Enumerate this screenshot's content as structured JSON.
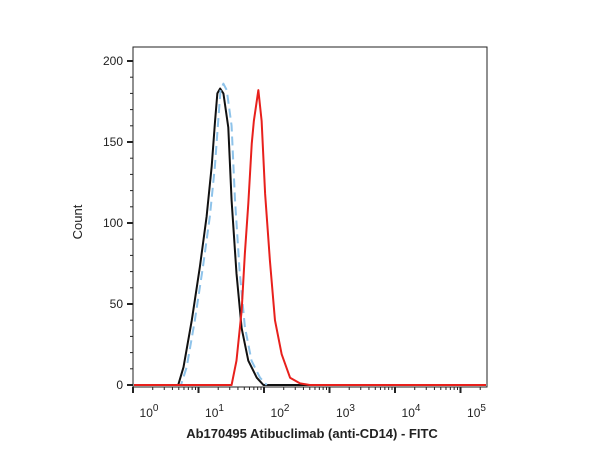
{
  "chart_data": {
    "type": "line",
    "title": "",
    "xlabel": "Ab170495 Atibuclimab (anti-CD14) - FITC",
    "ylabel": "Count",
    "x_scale": "log",
    "xlim": [
      1,
      230000
    ],
    "ylim": [
      0,
      200
    ],
    "x_ticks": [
      {
        "base": "10",
        "exp": "0",
        "value": 1
      },
      {
        "base": "10",
        "exp": "1",
        "value": 10
      },
      {
        "base": "10",
        "exp": "2",
        "value": 100
      },
      {
        "base": "10",
        "exp": "3",
        "value": 1000
      },
      {
        "base": "10",
        "exp": "4",
        "value": 10000
      },
      {
        "base": "10",
        "exp": "5",
        "value": 100000
      }
    ],
    "y_ticks": [
      "0",
      "50",
      "100",
      "150",
      "200"
    ],
    "grid": false,
    "legend": "none",
    "series": [
      {
        "color": "#111111",
        "style": "solid",
        "x": [
          4.9,
          5.9,
          7.9,
          10.5,
          13.3,
          15.9,
          17.9,
          19.4,
          21.4,
          24,
          28.5,
          32,
          38,
          45.6,
          57.6,
          77.5,
          98
        ],
        "y": [
          0,
          11,
          40,
          73,
          104,
          135,
          163,
          180,
          183,
          180,
          159,
          114,
          69,
          35,
          15,
          4.5,
          0
        ]
      },
      {
        "color": "#8ec3ea",
        "style": "dashed",
        "x": [
          5.4,
          6.6,
          8.8,
          11.7,
          14.9,
          17.8,
          20,
          21.7,
          24,
          27,
          32,
          36,
          42.5,
          51,
          64.5,
          87,
          110
        ],
        "y": [
          0,
          11,
          40,
          73,
          104,
          135,
          163,
          182,
          186,
          182,
          160,
          115,
          70,
          36,
          15,
          4.5,
          0
        ]
      },
      {
        "color": "#e8201c",
        "style": "solid",
        "x": [
          32,
          38,
          45.6,
          51,
          57.6,
          65,
          70,
          82,
          92,
          104,
          123,
          147,
          186,
          250,
          355,
          500
        ],
        "y": [
          0,
          15,
          46,
          81,
          112,
          149,
          163,
          182,
          163,
          118,
          77,
          40,
          19,
          4.5,
          1,
          0
        ]
      }
    ]
  }
}
